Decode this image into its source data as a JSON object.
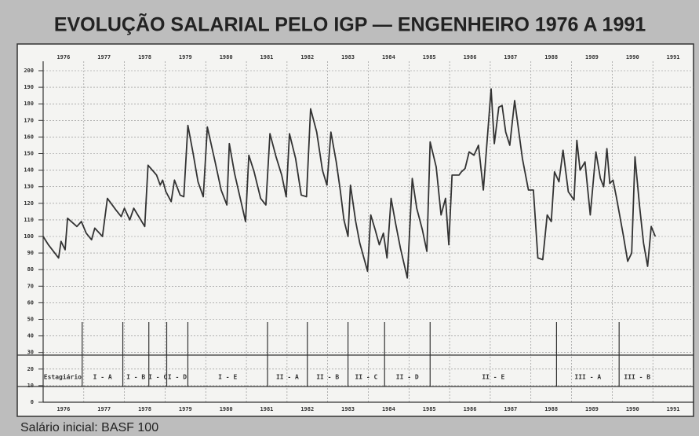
{
  "chart_data": {
    "type": "line",
    "title": "EVOLUÇÃO SALARIAL PELO IGP — ENGENHEIRO 1976 A 1991",
    "footnote": "Salário inicial: BASF 100",
    "xlim": [
      1976,
      1992
    ],
    "xticks": [
      1976,
      1977,
      1978,
      1979,
      1980,
      1981,
      1982,
      1983,
      1984,
      1985,
      1986,
      1987,
      1988,
      1989,
      1990,
      1991
    ],
    "ylim": [
      0,
      200
    ],
    "yticks": [
      0,
      10,
      20,
      30,
      40,
      50,
      60,
      70,
      80,
      90,
      100,
      110,
      120,
      130,
      140,
      150,
      160,
      170,
      180,
      190,
      200
    ],
    "grid": true,
    "series": [
      {
        "color": "#333333",
        "x": [
          1976.0,
          1976.13,
          1976.38,
          1976.44,
          1976.54,
          1976.6,
          1976.83,
          1976.94,
          1977.06,
          1977.19,
          1977.27,
          1977.46,
          1977.58,
          1977.79,
          1977.92,
          1978.0,
          1978.13,
          1978.23,
          1978.5,
          1978.58,
          1978.79,
          1978.88,
          1978.94,
          1979.02,
          1979.15,
          1979.23,
          1979.37,
          1979.46,
          1979.56,
          1979.69,
          1979.81,
          1979.94,
          1980.04,
          1980.23,
          1980.38,
          1980.52,
          1980.58,
          1980.71,
          1980.83,
          1980.98,
          1981.06,
          1981.19,
          1981.35,
          1981.48,
          1981.58,
          1981.73,
          1981.87,
          1981.98,
          1982.06,
          1982.21,
          1982.35,
          1982.48,
          1982.58,
          1982.73,
          1982.87,
          1982.98,
          1983.08,
          1983.21,
          1983.31,
          1983.4,
          1983.5,
          1983.56,
          1983.69,
          1983.79,
          1983.98,
          1984.06,
          1984.17,
          1984.27,
          1984.37,
          1984.46,
          1984.56,
          1984.67,
          1984.79,
          1984.96,
          1985.08,
          1985.19,
          1985.33,
          1985.44,
          1985.52,
          1985.67,
          1985.79,
          1985.9,
          1985.98,
          1986.06,
          1986.23,
          1986.29,
          1986.38,
          1986.48,
          1986.6,
          1986.71,
          1986.83,
          1987.02,
          1987.1,
          1987.21,
          1987.29,
          1987.38,
          1987.48,
          1987.6,
          1987.79,
          1987.94,
          1988.06,
          1988.17,
          1988.29,
          1988.4,
          1988.5,
          1988.58,
          1988.69,
          1988.79,
          1988.92,
          1989.06,
          1989.13,
          1989.21,
          1989.33,
          1989.46,
          1989.6,
          1989.71,
          1989.79,
          1989.87,
          1989.94,
          1990.02,
          1990.1,
          1990.27,
          1990.38,
          1990.48,
          1990.56,
          1990.67,
          1990.77,
          1990.87,
          1990.96,
          1991.06
        ],
        "values": [
          100,
          95,
          87,
          97,
          92,
          111,
          106,
          109,
          102,
          98,
          105,
          100,
          123,
          116,
          112,
          117,
          110,
          117,
          106,
          143,
          137,
          131,
          134,
          127,
          121,
          134,
          125,
          124,
          167,
          150,
          133,
          124,
          166,
          145,
          128,
          119,
          156,
          138,
          125,
          109,
          149,
          139,
          123,
          119,
          162,
          148,
          137,
          124,
          162,
          147,
          125,
          124,
          177,
          163,
          140,
          131,
          163,
          145,
          128,
          110,
          100,
          131,
          109,
          96,
          79,
          113,
          104,
          95,
          102,
          87,
          123,
          108,
          93,
          75,
          135,
          117,
          104,
          91,
          157,
          142,
          113,
          123,
          95,
          137,
          137,
          139,
          141,
          151,
          149,
          155,
          128,
          189,
          156,
          178,
          179,
          163,
          155,
          182,
          147,
          128,
          128,
          87,
          86,
          113,
          109,
          139,
          133,
          152,
          127,
          122,
          158,
          140,
          145,
          113,
          151,
          135,
          130,
          153,
          132,
          134,
          124,
          101,
          85,
          90,
          148,
          119,
          96,
          82,
          106,
          100
        ]
      }
    ],
    "stages": [
      {
        "label": "Estagiário",
        "from": 1976.0
      },
      {
        "label": "I - A",
        "from": 1976.96
      },
      {
        "label": "I - B",
        "from": 1977.96
      },
      {
        "label": "I - C",
        "from": 1978.6
      },
      {
        "label": "I - D",
        "from": 1979.04
      },
      {
        "label": "I - E",
        "from": 1979.56
      },
      {
        "label": "II - A",
        "from": 1981.52
      },
      {
        "label": "II - B",
        "from": 1982.5
      },
      {
        "label": "II - C",
        "from": 1983.5
      },
      {
        "label": "II - D",
        "from": 1984.4
      },
      {
        "label": "II - E",
        "from": 1985.52
      },
      {
        "label": "III - A",
        "from": 1988.63
      },
      {
        "label": "III - B",
        "from": 1990.17
      }
    ]
  }
}
